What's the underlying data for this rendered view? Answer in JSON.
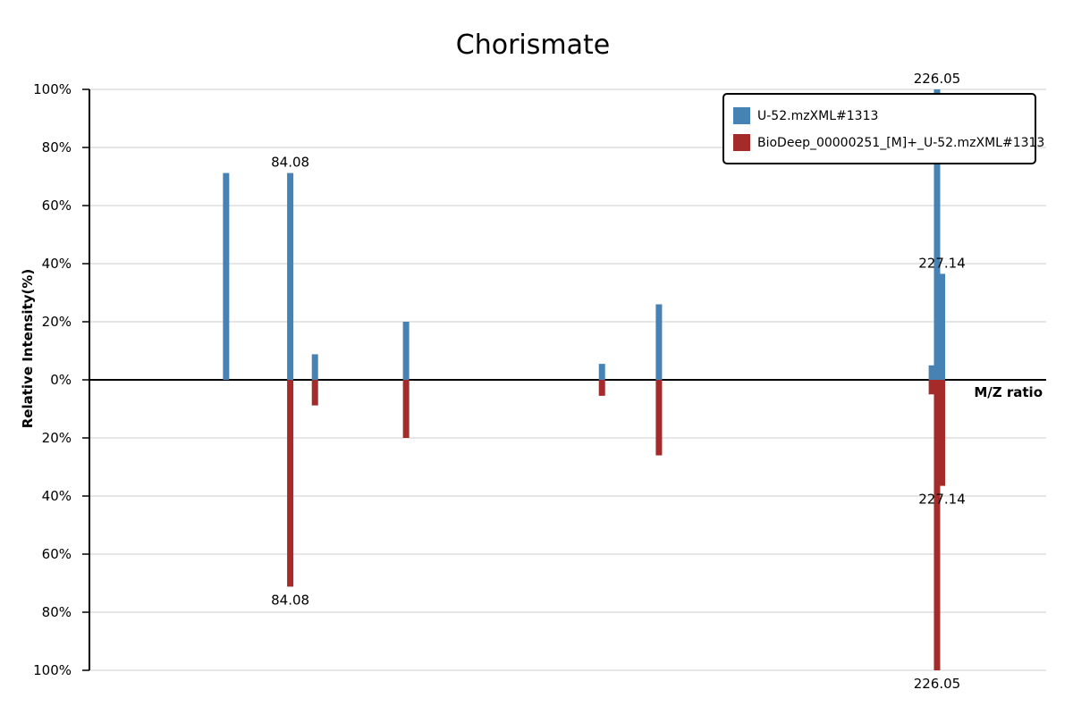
{
  "chart_data": {
    "type": "bar",
    "title": "Chorismate",
    "xlabel": "M/Z ratio",
    "ylabel": "Relative Intensity(%)",
    "x_range": [
      40,
      250
    ],
    "ylim": [
      -100,
      100
    ],
    "y_ticks": [
      {
        "value": 100,
        "label": "100%"
      },
      {
        "value": 80,
        "label": "80%"
      },
      {
        "value": 60,
        "label": "60%"
      },
      {
        "value": 40,
        "label": "40%"
      },
      {
        "value": 20,
        "label": "20%"
      },
      {
        "value": 0,
        "label": "0%"
      },
      {
        "value": -20,
        "label": "20%"
      },
      {
        "value": -40,
        "label": "40%"
      },
      {
        "value": -60,
        "label": "60%"
      },
      {
        "value": -80,
        "label": "80%"
      },
      {
        "value": -100,
        "label": "100%"
      }
    ],
    "grid": true,
    "legend_position": "top-right",
    "series": [
      {
        "name": "U-52.mzXML#1313",
        "color": "#4682b4",
        "direction": "up",
        "peaks": [
          {
            "mz": 70.0,
            "intensity": 71.2
          },
          {
            "mz": 84.08,
            "intensity": 71.2,
            "label": "84.08"
          },
          {
            "mz": 89.5,
            "intensity": 8.8
          },
          {
            "mz": 109.5,
            "intensity": 20.0
          },
          {
            "mz": 152.5,
            "intensity": 5.5
          },
          {
            "mz": 165.0,
            "intensity": 26.0
          },
          {
            "mz": 224.9,
            "intensity": 5.0
          },
          {
            "mz": 226.05,
            "intensity": 100.0,
            "label": "226.05"
          },
          {
            "mz": 227.14,
            "intensity": 36.5,
            "label": "227.14"
          }
        ]
      },
      {
        "name": "BioDeep_00000251_[M]+_U-52.mzXML#1313",
        "color": "#a52a2a",
        "direction": "down",
        "peaks": [
          {
            "mz": 84.08,
            "intensity": 71.2,
            "label": "84.08"
          },
          {
            "mz": 89.5,
            "intensity": 8.8
          },
          {
            "mz": 109.5,
            "intensity": 20.0
          },
          {
            "mz": 152.5,
            "intensity": 5.5
          },
          {
            "mz": 165.0,
            "intensity": 26.0
          },
          {
            "mz": 224.9,
            "intensity": 5.0
          },
          {
            "mz": 226.05,
            "intensity": 100.0,
            "label": "226.05"
          },
          {
            "mz": 227.14,
            "intensity": 36.5,
            "label": "227.14"
          }
        ]
      }
    ]
  }
}
